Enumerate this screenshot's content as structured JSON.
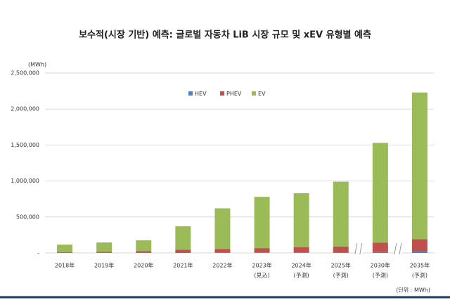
{
  "chart_data": {
    "type": "stacked_bar",
    "title": "보수적(시장 기반) 예측: 글로벌 자동차 LiB 시장 규모 및 xEV 유형별 예측",
    "y_unit": "(MWh)",
    "unit_note": "(단위 : MWh)",
    "categories": [
      "2018年",
      "2019年",
      "2020年",
      "2021年",
      "2022年",
      "2023年",
      "2024年",
      "2025年",
      "2030年",
      "2035年"
    ],
    "sublabels": [
      null,
      null,
      null,
      null,
      null,
      "(見込)",
      "(予測)",
      "(予測)",
      "(予測)",
      "(予測)"
    ],
    "series": [
      {
        "name": "HEV",
        "color": "#4f81bd",
        "values": [
          3000,
          3000,
          4000,
          5000,
          6000,
          7000,
          8000,
          9000,
          12000,
          20000
        ]
      },
      {
        "name": "PHEV",
        "color": "#c0504d",
        "values": [
          10000,
          12000,
          20000,
          40000,
          50000,
          60000,
          70000,
          80000,
          130000,
          170000
        ]
      },
      {
        "name": "EV",
        "color": "#9bbb59",
        "values": [
          102000,
          130000,
          151000,
          325000,
          564000,
          713000,
          752000,
          901000,
          1388000,
          2040000
        ]
      }
    ],
    "ylim": [
      0,
      2500000
    ],
    "yticks": [
      {
        "value": 0,
        "label": "-"
      },
      {
        "value": 500000,
        "label": "500,000"
      },
      {
        "value": 1000000,
        "label": "1,000,000"
      },
      {
        "value": 1500000,
        "label": "1,500,000"
      },
      {
        "value": 2000000,
        "label": "2,000,000"
      },
      {
        "value": 2500000,
        "label": "2,500,000"
      }
    ],
    "grid": true,
    "legend": "top"
  }
}
